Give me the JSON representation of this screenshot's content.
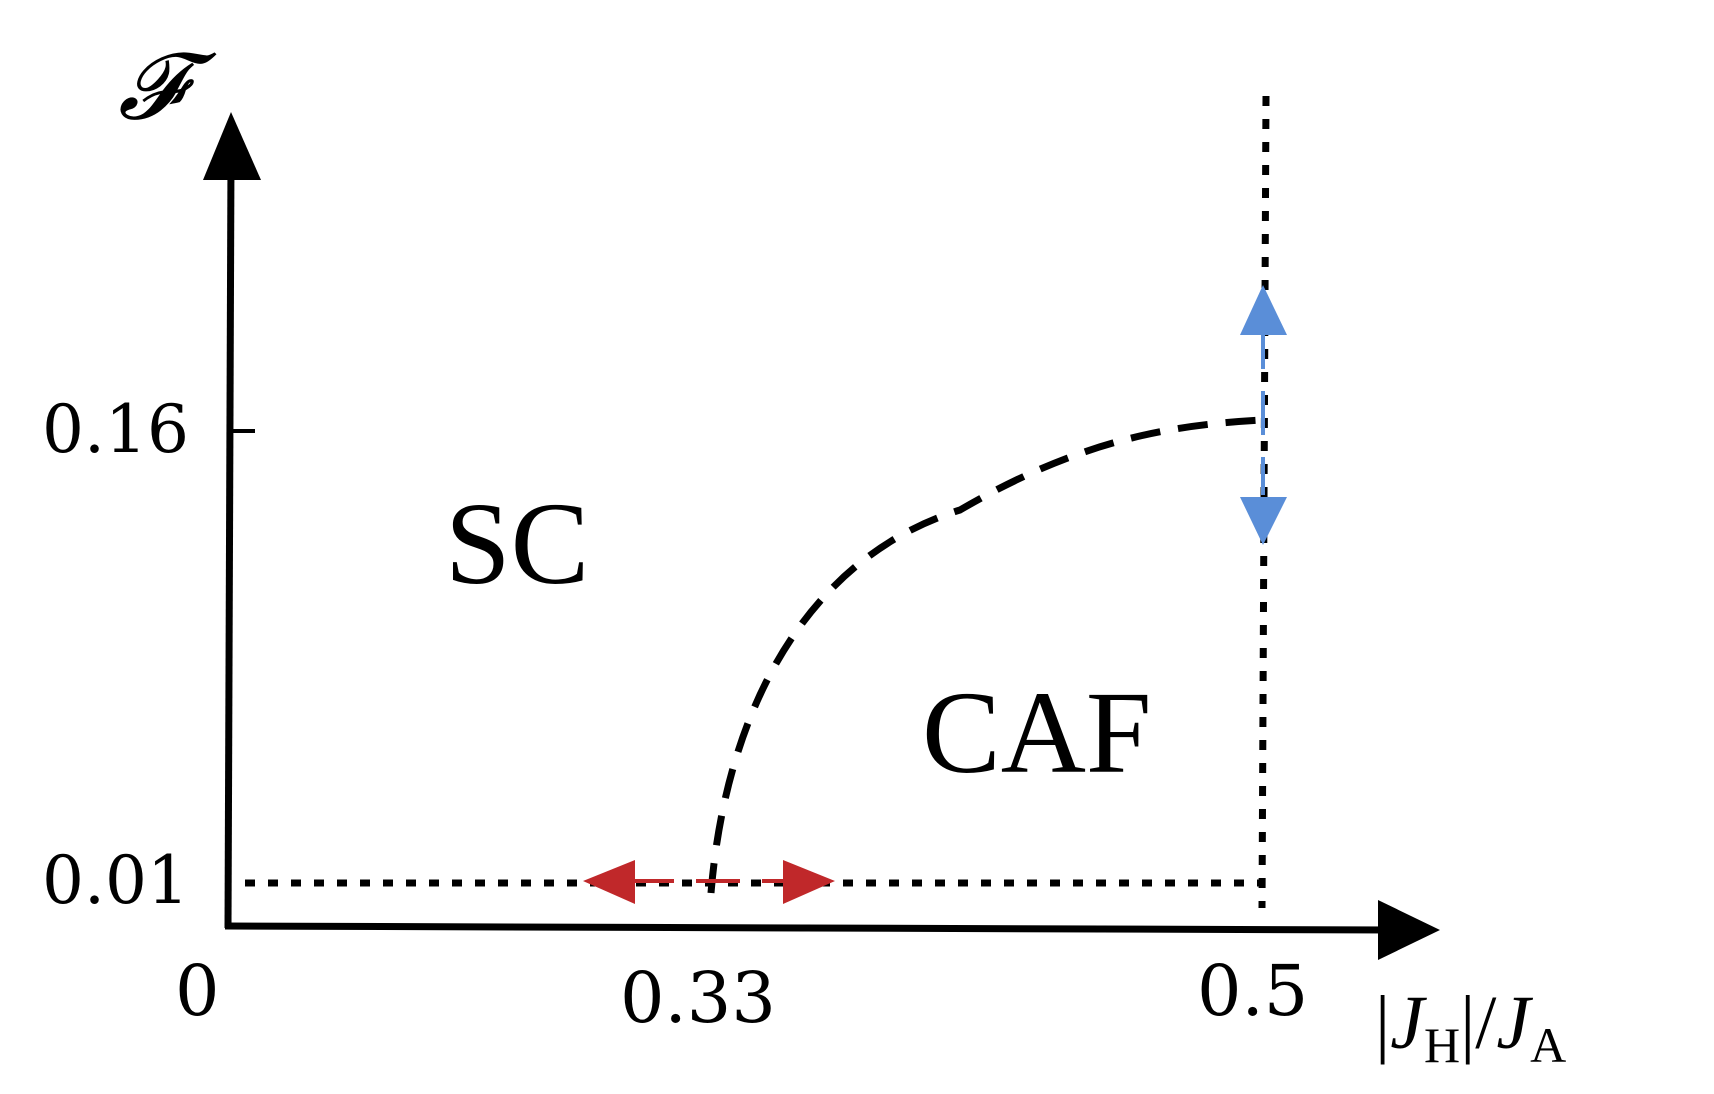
{
  "axes": {
    "y_label": "𝓕",
    "x_label": {
      "bar_left": "|",
      "j1": "J",
      "sub1": "H",
      "bar_right": "|/",
      "j2": "J",
      "sub2": "A"
    },
    "x_ticks": [
      "0",
      "0.33",
      "0.5"
    ],
    "y_ticks": [
      "0.16",
      "0.01"
    ]
  },
  "regions": {
    "left": "SC",
    "right": "CAF"
  },
  "colors": {
    "axis": "#000000",
    "boundary": "#000000",
    "red_arrow": "#c0282a",
    "blue_arrow": "#5a8ed8"
  }
}
